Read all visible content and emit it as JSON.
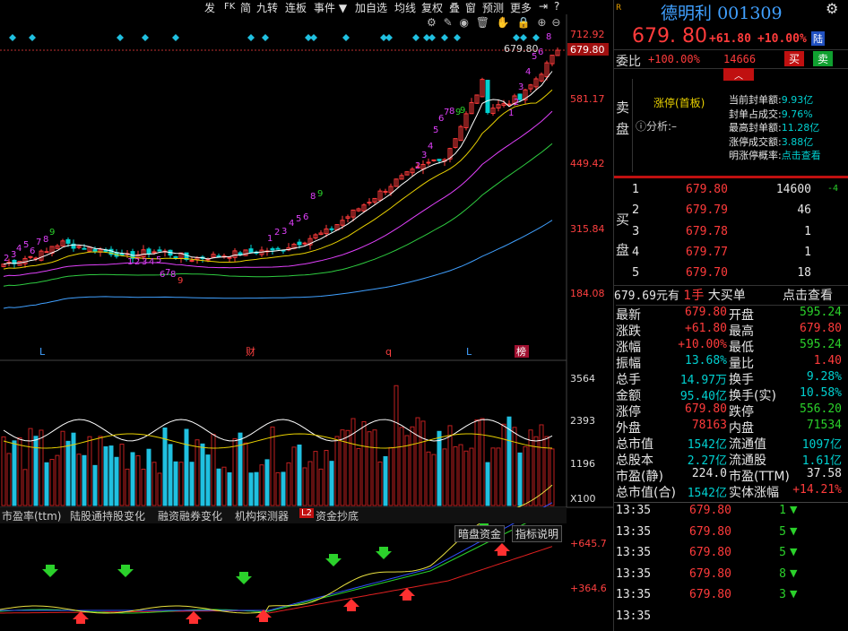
{
  "toolbar": {
    "items": [
      "发",
      "FK",
      "简",
      "九转",
      "连板",
      "事件 ▼",
      "加自选",
      "均线",
      "复权",
      "叠",
      "窗",
      "预测",
      "更多"
    ]
  },
  "main_chart": {
    "price_ticks": [
      "712.92",
      "679.80",
      "581.17",
      "449.42",
      "315.84",
      "184.08"
    ],
    "current_price_marker": "679.80",
    "peak_label": "679.80",
    "event_markers": [
      "L",
      "财",
      "q",
      "L",
      "榜"
    ],
    "ma_colors": {
      "ma5": "#ffffff",
      "ma10": "#e8d000",
      "ma20": "#e040fb",
      "ma30": "#2ecc40",
      "ma60": "#40a0ff"
    },
    "up_color": "#ff3b3b",
    "down_color": "#00d0d0",
    "td_counts_up": [
      "2",
      "3",
      "4",
      "5",
      "6",
      "7",
      "8",
      "9",
      "1",
      "2",
      "3",
      "4",
      "5",
      "6",
      "7",
      "8",
      "9",
      "1",
      "2",
      "3",
      "4",
      "5",
      "6",
      "7",
      "8"
    ],
    "td_counts_down": [
      "1",
      "2",
      "3",
      "4",
      "5",
      "6",
      "7",
      "8",
      "9"
    ]
  },
  "volume_chart": {
    "ticks": [
      "3564",
      "2393",
      "1196"
    ],
    "unit": "X100"
  },
  "tabs": {
    "items": [
      "市盈率(ttm)",
      "陆股通持股变化",
      "融资融券变化",
      "机构探测器",
      "资金抄底"
    ],
    "l2_badge": "L2"
  },
  "indicator": {
    "buttons": [
      "暗盘资金",
      "指标说明"
    ],
    "ticks": [
      "+645.7",
      "+364.6"
    ]
  },
  "quote": {
    "name": "德明利",
    "code": "001309",
    "price": "679. 80",
    "change": "+61.80",
    "pct": "+10.00%",
    "badge": "陆",
    "weibi_label": "委比",
    "weibi_value": "+100.00%",
    "weibi_diff": "14666",
    "buy_btn": "买",
    "sell_btn": "卖",
    "sell_side_label": [
      "卖",
      "盘"
    ],
    "zhangting_status": "涨停(首板)",
    "analysis_label": "ⓘ分析:–",
    "seal_stats": [
      {
        "label": "当前封单额:",
        "value": "9.93亿"
      },
      {
        "label": "封单占成交:",
        "value": "9.76%"
      },
      {
        "label": "最高封单额:",
        "value": "11.28亿"
      },
      {
        "label": "涨停成交额:",
        "value": "3.88亿"
      },
      {
        "label": "明涨停概率:",
        "value": "点击查看"
      }
    ],
    "buy_side_label": [
      "买",
      "盘"
    ],
    "bids": [
      {
        "level": "1",
        "price": "679.80",
        "vol": "14600",
        "chg": "-4"
      },
      {
        "level": "2",
        "price": "679.79",
        "vol": "46",
        "chg": ""
      },
      {
        "level": "3",
        "price": "679.78",
        "vol": "1",
        "chg": ""
      },
      {
        "level": "4",
        "price": "679.77",
        "vol": "1",
        "chg": ""
      },
      {
        "level": "5",
        "price": "679.70",
        "vol": "18",
        "chg": ""
      }
    ],
    "big_order": {
      "amount": "679.69元有",
      "count": "1手",
      "label": "大买单",
      "link": "点击查看"
    },
    "stats": [
      {
        "l1": "最新",
        "v1": "679.80",
        "c1": "red",
        "l2": "开盘",
        "v2": "595.24",
        "c2": "green"
      },
      {
        "l1": "涨跌",
        "v1": "+61.80",
        "c1": "red",
        "l2": "最高",
        "v2": "679.80",
        "c2": "red"
      },
      {
        "l1": "涨幅",
        "v1": "+10.00%",
        "c1": "red",
        "l2": "最低",
        "v2": "595.24",
        "c2": "green"
      },
      {
        "l1": "振幅",
        "v1": "13.68%",
        "c1": "cyan",
        "l2": "量比",
        "v2": "1.40",
        "c2": "red"
      },
      {
        "l1": "总手",
        "v1": "14.97万",
        "c1": "cyan",
        "l2": "换手",
        "v2": "9.28%",
        "c2": "cyan"
      },
      {
        "l1": "金额",
        "v1": "95.40亿",
        "c1": "cyan",
        "l2": "换手(实)",
        "v2": "10.58%",
        "c2": "cyan"
      },
      {
        "l1": "涨停",
        "v1": "679.80",
        "c1": "red",
        "l2": "跌停",
        "v2": "556.20",
        "c2": "green"
      },
      {
        "l1": "外盘",
        "v1": "78163",
        "c1": "red",
        "l2": "内盘",
        "v2": "71534",
        "c2": "green"
      },
      {
        "l1": "总市值",
        "v1": "1542亿",
        "c1": "cyan",
        "l2": "流通值",
        "v2": "1097亿",
        "c2": "cyan"
      },
      {
        "l1": "总股本",
        "v1": "2.27亿",
        "c1": "cyan",
        "l2": "流通股",
        "v2": "1.61亿",
        "c2": "cyan"
      },
      {
        "l1": "市盈(静)",
        "v1": "224.0",
        "c1": "white",
        "l2": "市盈(TTM)",
        "v2": "37.58",
        "c2": "white"
      },
      {
        "l1": "总市值(合)",
        "v1": "1542亿",
        "c1": "cyan",
        "l2": "实体涨幅",
        "v2": "+14.21%",
        "c2": "red"
      }
    ],
    "ticks": [
      {
        "time": "13:35",
        "price": "679.80",
        "vol": "1",
        "dir": "down"
      },
      {
        "time": "13:35",
        "price": "679.80",
        "vol": "5",
        "dir": "down"
      },
      {
        "time": "13:35",
        "price": "679.80",
        "vol": "5",
        "dir": "down"
      },
      {
        "time": "13:35",
        "price": "679.80",
        "vol": "8",
        "dir": "down"
      },
      {
        "time": "13:35",
        "price": "679.80",
        "vol": "3",
        "dir": "down"
      },
      {
        "time": "13:35",
        "price": "",
        "vol": "",
        "dir": ""
      }
    ]
  }
}
